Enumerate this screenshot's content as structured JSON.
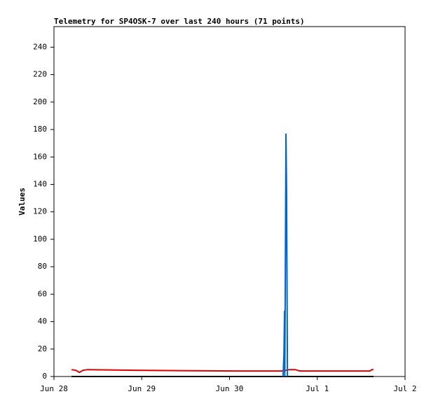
{
  "chart_data": {
    "type": "line",
    "title": "Telemetry for SP4OSK-7 over last 240 hours (71 points)",
    "y_label": "Values",
    "xlim": [
      0,
      4
    ],
    "xticks": [
      {
        "value": 0,
        "label": "Jun 28"
      },
      {
        "value": 1,
        "label": "Jun 29"
      },
      {
        "value": 2,
        "label": "Jun 30"
      },
      {
        "value": 3,
        "label": "Jul 1"
      },
      {
        "value": 4,
        "label": "Jul 2"
      }
    ],
    "ylim": [
      0,
      255
    ],
    "yticks": [
      0,
      20,
      40,
      60,
      80,
      100,
      120,
      140,
      160,
      180,
      200,
      220,
      240
    ],
    "grid": false,
    "series": [
      {
        "color": "#000000",
        "x": [
          0.2,
          1.0,
          2.0,
          2.6,
          3.0,
          3.64
        ],
        "values": [
          0,
          0,
          0,
          0,
          0,
          0
        ]
      },
      {
        "color": "#dd0000",
        "x": [
          0.2,
          0.25,
          0.29,
          0.33,
          0.38,
          0.94,
          2.06,
          2.6,
          2.68,
          2.75,
          2.8,
          3.6,
          3.62,
          3.64
        ],
        "values": [
          5,
          4.5,
          3,
          4.5,
          5,
          4.5,
          4,
          4,
          5,
          5,
          4,
          4,
          5,
          5
        ]
      },
      {
        "color": "#0066cc",
        "x": [
          2.61,
          2.62,
          2.627,
          2.63,
          2.635,
          2.643,
          2.65,
          2.66
        ],
        "values": [
          0,
          16,
          48,
          0,
          64,
          177,
          136,
          0
        ]
      }
    ]
  }
}
